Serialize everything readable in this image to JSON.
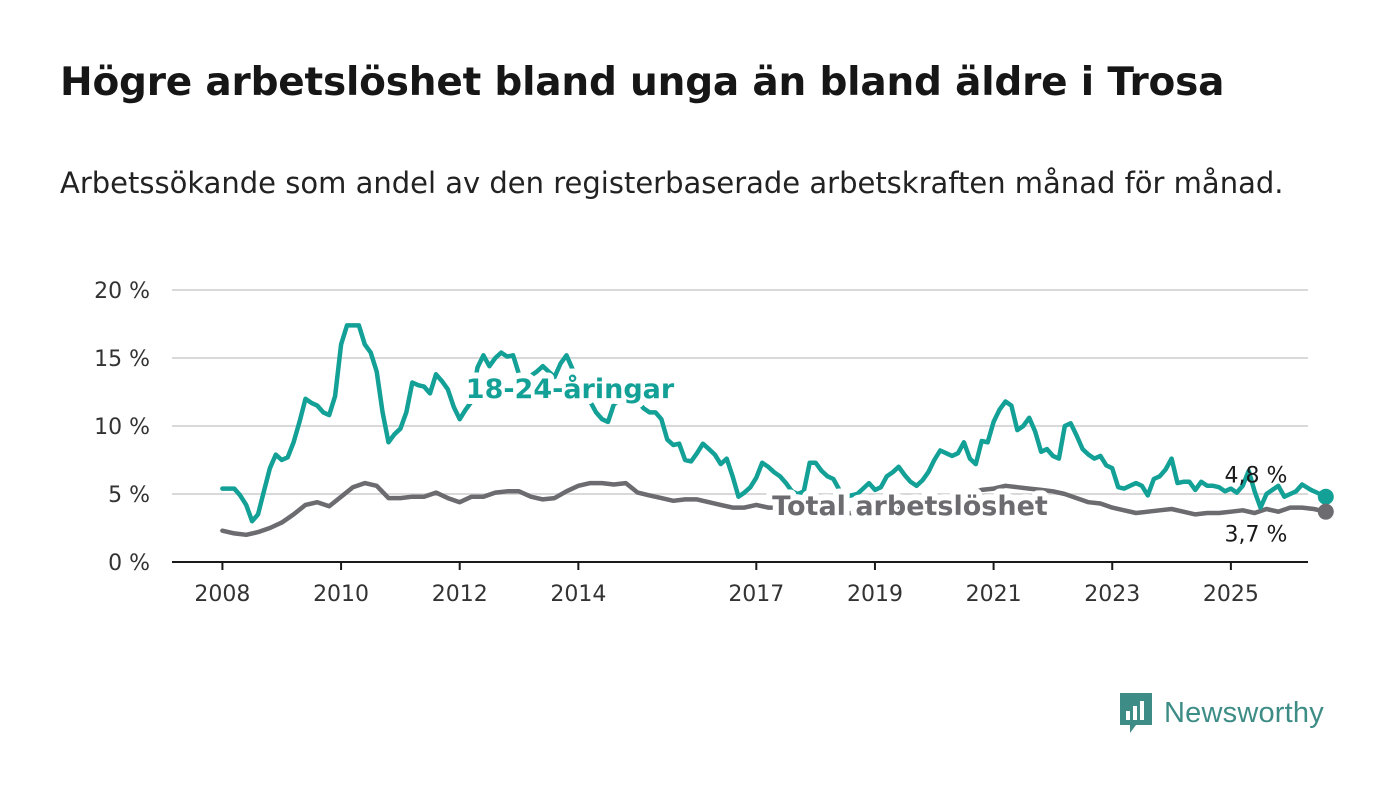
{
  "title": "Högre arbetslöshet bland unga än bland äldre i Trosa",
  "subtitle": "Arbetssökande som andel av den registerbaserade arbetskraften månad för månad.",
  "brand": {
    "name": "Newsworthy",
    "icon": "bar-chart-speech-bubble-icon",
    "color": "#3d8c86"
  },
  "chart_data": {
    "type": "line",
    "x_unit": "year (decimal, monthly data)",
    "y_ticks": [
      "0 %",
      "5 %",
      "10 %",
      "15 %",
      "20 %"
    ],
    "y_tick_values": [
      0,
      5,
      10,
      15,
      20
    ],
    "x_ticks": [
      "2008",
      "2010",
      "2012",
      "2014",
      "2017",
      "2019",
      "2021",
      "2023",
      "2025"
    ],
    "x_tick_values": [
      2008,
      2010,
      2012,
      2014,
      2017,
      2019,
      2021,
      2023,
      2025
    ],
    "xlim": [
      2007.15,
      2026.3
    ],
    "ylim": [
      0,
      20
    ],
    "grid": true,
    "series": [
      {
        "name": "18-24-åringar",
        "color": "#13a096",
        "end_label": "4,8 %",
        "points": [
          [
            2008.0,
            5.4
          ],
          [
            2008.1,
            5.4
          ],
          [
            2008.2,
            5.4
          ],
          [
            2008.3,
            4.9
          ],
          [
            2008.4,
            4.2
          ],
          [
            2008.5,
            3.0
          ],
          [
            2008.6,
            3.5
          ],
          [
            2008.7,
            5.2
          ],
          [
            2008.8,
            6.9
          ],
          [
            2008.9,
            7.9
          ],
          [
            2009.0,
            7.5
          ],
          [
            2009.1,
            7.7
          ],
          [
            2009.2,
            8.8
          ],
          [
            2009.3,
            10.3
          ],
          [
            2009.4,
            12.0
          ],
          [
            2009.5,
            11.7
          ],
          [
            2009.6,
            11.5
          ],
          [
            2009.7,
            11.0
          ],
          [
            2009.8,
            10.8
          ],
          [
            2009.9,
            12.2
          ],
          [
            2010.0,
            16.0
          ],
          [
            2010.1,
            17.4
          ],
          [
            2010.2,
            17.4
          ],
          [
            2010.3,
            17.4
          ],
          [
            2010.4,
            16.0
          ],
          [
            2010.5,
            15.4
          ],
          [
            2010.6,
            14.0
          ],
          [
            2010.7,
            11.0
          ],
          [
            2010.8,
            8.8
          ],
          [
            2010.9,
            9.4
          ],
          [
            2011.0,
            9.8
          ],
          [
            2011.1,
            11.0
          ],
          [
            2011.2,
            13.2
          ],
          [
            2011.3,
            13.0
          ],
          [
            2011.4,
            12.9
          ],
          [
            2011.5,
            12.4
          ],
          [
            2011.6,
            13.8
          ],
          [
            2011.7,
            13.3
          ],
          [
            2011.8,
            12.7
          ],
          [
            2011.9,
            11.4
          ],
          [
            2012.0,
            10.5
          ],
          [
            2012.1,
            11.2
          ],
          [
            2012.2,
            11.8
          ],
          [
            2012.3,
            14.3
          ],
          [
            2012.4,
            15.2
          ],
          [
            2012.5,
            14.4
          ],
          [
            2012.6,
            15.0
          ],
          [
            2012.7,
            15.4
          ],
          [
            2012.8,
            15.1
          ],
          [
            2012.9,
            15.2
          ],
          [
            2013.0,
            13.8
          ],
          [
            2013.1,
            13.2
          ],
          [
            2013.2,
            13.7
          ],
          [
            2013.3,
            14.0
          ],
          [
            2013.4,
            14.4
          ],
          [
            2013.5,
            14.0
          ],
          [
            2013.6,
            13.6
          ],
          [
            2013.7,
            14.6
          ],
          [
            2013.8,
            15.2
          ],
          [
            2013.9,
            14.2
          ],
          [
            2014.0,
            12.8
          ],
          [
            2014.1,
            12.2
          ],
          [
            2014.2,
            11.8
          ],
          [
            2014.3,
            11.0
          ],
          [
            2014.4,
            10.5
          ],
          [
            2014.5,
            10.3
          ],
          [
            2014.6,
            11.6
          ],
          [
            2014.7,
            11.9
          ],
          [
            2014.8,
            11.6
          ],
          [
            2014.9,
            12.1
          ],
          [
            2015.0,
            11.8
          ],
          [
            2015.1,
            11.3
          ],
          [
            2015.2,
            11.0
          ],
          [
            2015.3,
            11.0
          ],
          [
            2015.4,
            10.5
          ],
          [
            2015.5,
            9.0
          ],
          [
            2015.6,
            8.6
          ],
          [
            2015.7,
            8.7
          ],
          [
            2015.8,
            7.5
          ],
          [
            2015.9,
            7.4
          ],
          [
            2016.0,
            8.0
          ],
          [
            2016.1,
            8.7
          ],
          [
            2016.2,
            8.3
          ],
          [
            2016.3,
            7.9
          ],
          [
            2016.4,
            7.2
          ],
          [
            2016.5,
            7.6
          ],
          [
            2016.6,
            6.3
          ],
          [
            2016.7,
            4.8
          ],
          [
            2016.8,
            5.1
          ],
          [
            2016.9,
            5.5
          ],
          [
            2017.0,
            6.2
          ],
          [
            2017.1,
            7.3
          ],
          [
            2017.2,
            7.0
          ],
          [
            2017.3,
            6.6
          ],
          [
            2017.4,
            6.3
          ],
          [
            2017.5,
            5.8
          ],
          [
            2017.6,
            5.2
          ],
          [
            2017.7,
            5.0
          ],
          [
            2017.8,
            5.2
          ],
          [
            2017.9,
            7.3
          ],
          [
            2018.0,
            7.3
          ],
          [
            2018.1,
            6.7
          ],
          [
            2018.2,
            6.3
          ],
          [
            2018.3,
            6.1
          ],
          [
            2018.4,
            5.3
          ],
          [
            2018.5,
            4.8
          ],
          [
            2018.6,
            4.9
          ],
          [
            2018.7,
            5.0
          ],
          [
            2018.8,
            5.4
          ],
          [
            2018.9,
            5.8
          ],
          [
            2019.0,
            5.3
          ],
          [
            2019.1,
            5.5
          ],
          [
            2019.2,
            6.3
          ],
          [
            2019.3,
            6.6
          ],
          [
            2019.4,
            7.0
          ],
          [
            2019.5,
            6.4
          ],
          [
            2019.6,
            5.9
          ],
          [
            2019.7,
            5.6
          ],
          [
            2019.8,
            6.0
          ],
          [
            2019.9,
            6.6
          ],
          [
            2020.0,
            7.5
          ],
          [
            2020.1,
            8.2
          ],
          [
            2020.2,
            8.0
          ],
          [
            2020.3,
            7.8
          ],
          [
            2020.4,
            8.0
          ],
          [
            2020.5,
            8.8
          ],
          [
            2020.6,
            7.6
          ],
          [
            2020.7,
            7.2
          ],
          [
            2020.8,
            8.9
          ],
          [
            2020.9,
            8.8
          ],
          [
            2021.0,
            10.3
          ],
          [
            2021.1,
            11.2
          ],
          [
            2021.2,
            11.8
          ],
          [
            2021.3,
            11.5
          ],
          [
            2021.4,
            9.7
          ],
          [
            2021.5,
            10.0
          ],
          [
            2021.6,
            10.6
          ],
          [
            2021.7,
            9.6
          ],
          [
            2021.8,
            8.1
          ],
          [
            2021.9,
            8.3
          ],
          [
            2022.0,
            7.8
          ],
          [
            2022.1,
            7.6
          ],
          [
            2022.2,
            10.0
          ],
          [
            2022.3,
            10.2
          ],
          [
            2022.4,
            9.3
          ],
          [
            2022.5,
            8.3
          ],
          [
            2022.6,
            7.9
          ],
          [
            2022.7,
            7.6
          ],
          [
            2022.8,
            7.8
          ],
          [
            2022.9,
            7.1
          ],
          [
            2023.0,
            6.9
          ],
          [
            2023.1,
            5.5
          ],
          [
            2023.2,
            5.4
          ],
          [
            2023.3,
            5.6
          ],
          [
            2023.4,
            5.8
          ],
          [
            2023.5,
            5.6
          ],
          [
            2023.6,
            4.9
          ],
          [
            2023.7,
            6.1
          ],
          [
            2023.8,
            6.3
          ],
          [
            2023.9,
            6.8
          ],
          [
            2024.0,
            7.6
          ],
          [
            2024.1,
            5.8
          ],
          [
            2024.2,
            5.9
          ],
          [
            2024.3,
            5.9
          ],
          [
            2024.4,
            5.3
          ],
          [
            2024.5,
            5.9
          ],
          [
            2024.6,
            5.6
          ],
          [
            2024.7,
            5.6
          ],
          [
            2024.8,
            5.5
          ],
          [
            2024.9,
            5.2
          ],
          [
            2025.0,
            5.4
          ],
          [
            2025.1,
            5.1
          ],
          [
            2025.2,
            5.6
          ],
          [
            2025.3,
            6.7
          ],
          [
            2025.4,
            5.2
          ],
          [
            2025.5,
            4.0
          ],
          [
            2025.6,
            5.0
          ],
          [
            2025.7,
            5.3
          ],
          [
            2025.8,
            5.6
          ],
          [
            2025.9,
            4.8
          ],
          [
            2026.0,
            5.0
          ],
          [
            2026.1,
            5.2
          ],
          [
            2026.2,
            5.7
          ],
          [
            2026.35,
            5.3
          ],
          [
            2026.5,
            5.0
          ],
          [
            2026.6,
            4.8
          ]
        ]
      },
      {
        "name": "Total arbetslöshet",
        "color": "#6b6b70",
        "end_label": "3,7 %",
        "points": [
          [
            2008.0,
            2.3
          ],
          [
            2008.2,
            2.1
          ],
          [
            2008.4,
            2.0
          ],
          [
            2008.6,
            2.2
          ],
          [
            2008.8,
            2.5
          ],
          [
            2009.0,
            2.9
          ],
          [
            2009.2,
            3.5
          ],
          [
            2009.4,
            4.2
          ],
          [
            2009.6,
            4.4
          ],
          [
            2009.8,
            4.1
          ],
          [
            2010.0,
            4.8
          ],
          [
            2010.2,
            5.5
          ],
          [
            2010.4,
            5.8
          ],
          [
            2010.6,
            5.6
          ],
          [
            2010.8,
            4.7
          ],
          [
            2011.0,
            4.7
          ],
          [
            2011.2,
            4.8
          ],
          [
            2011.4,
            4.8
          ],
          [
            2011.6,
            5.1
          ],
          [
            2011.8,
            4.7
          ],
          [
            2012.0,
            4.4
          ],
          [
            2012.2,
            4.8
          ],
          [
            2012.4,
            4.8
          ],
          [
            2012.6,
            5.1
          ],
          [
            2012.8,
            5.2
          ],
          [
            2013.0,
            5.2
          ],
          [
            2013.2,
            4.8
          ],
          [
            2013.4,
            4.6
          ],
          [
            2013.6,
            4.7
          ],
          [
            2013.8,
            5.2
          ],
          [
            2014.0,
            5.6
          ],
          [
            2014.2,
            5.8
          ],
          [
            2014.4,
            5.8
          ],
          [
            2014.6,
            5.7
          ],
          [
            2014.8,
            5.8
          ],
          [
            2015.0,
            5.1
          ],
          [
            2015.2,
            4.9
          ],
          [
            2015.4,
            4.7
          ],
          [
            2015.6,
            4.5
          ],
          [
            2015.8,
            4.6
          ],
          [
            2016.0,
            4.6
          ],
          [
            2016.2,
            4.4
          ],
          [
            2016.4,
            4.2
          ],
          [
            2016.6,
            4.0
          ],
          [
            2016.8,
            4.0
          ],
          [
            2017.0,
            4.2
          ],
          [
            2017.2,
            4.0
          ],
          [
            2017.4,
            4.0
          ],
          [
            2017.6,
            3.7
          ],
          [
            2017.8,
            3.6
          ],
          [
            2018.0,
            3.6
          ],
          [
            2018.2,
            3.8
          ],
          [
            2018.4,
            3.5
          ],
          [
            2018.6,
            3.6
          ],
          [
            2018.8,
            3.7
          ],
          [
            2019.0,
            3.8
          ],
          [
            2019.2,
            3.8
          ],
          [
            2019.4,
            3.9
          ],
          [
            2019.6,
            3.9
          ],
          [
            2019.8,
            4.1
          ],
          [
            2020.0,
            4.1
          ],
          [
            2020.2,
            4.2
          ],
          [
            2020.4,
            4.6
          ],
          [
            2020.6,
            5.0
          ],
          [
            2020.8,
            5.3
          ],
          [
            2021.0,
            5.4
          ],
          [
            2021.2,
            5.6
          ],
          [
            2021.4,
            5.5
          ],
          [
            2021.6,
            5.4
          ],
          [
            2021.8,
            5.3
          ],
          [
            2022.0,
            5.2
          ],
          [
            2022.2,
            5.0
          ],
          [
            2022.4,
            4.7
          ],
          [
            2022.6,
            4.4
          ],
          [
            2022.8,
            4.3
          ],
          [
            2023.0,
            4.0
          ],
          [
            2023.2,
            3.8
          ],
          [
            2023.4,
            3.6
          ],
          [
            2023.6,
            3.7
          ],
          [
            2023.8,
            3.8
          ],
          [
            2024.0,
            3.9
          ],
          [
            2024.2,
            3.7
          ],
          [
            2024.4,
            3.5
          ],
          [
            2024.6,
            3.6
          ],
          [
            2024.8,
            3.6
          ],
          [
            2025.0,
            3.7
          ],
          [
            2025.2,
            3.8
          ],
          [
            2025.4,
            3.6
          ],
          [
            2025.6,
            3.9
          ],
          [
            2025.8,
            3.7
          ],
          [
            2026.0,
            4.0
          ],
          [
            2026.2,
            4.0
          ],
          [
            2026.4,
            3.9
          ],
          [
            2026.6,
            3.7
          ]
        ]
      }
    ]
  }
}
